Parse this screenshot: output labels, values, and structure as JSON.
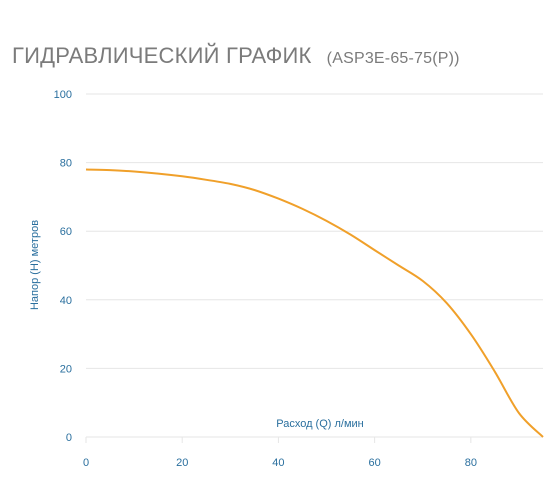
{
  "header": {
    "title": "ГИДРАВЛИЧЕСКИЙ ГРАФИК",
    "model": "(ASP3E-65-75(P))"
  },
  "colors": {
    "curve": "#f0a02a",
    "grid": "#e6e6e6",
    "ticks": "#2a6f9e"
  },
  "chart_data": {
    "type": "line",
    "title": "ГИДРАВЛИЧЕСКИЙ ГРАФИК (ASP3E-65-75(P))",
    "xlabel": "Расход (Q) л/мин",
    "ylabel": "Напор (H) метров",
    "xlim": [
      0,
      95
    ],
    "ylim": [
      0,
      100
    ],
    "xticks": [
      0,
      20,
      40,
      60,
      80
    ],
    "yticks": [
      0,
      20,
      40,
      60,
      80,
      100
    ],
    "grid": "horizontal",
    "series": [
      {
        "x": [
          0,
          5,
          10,
          15,
          20,
          25,
          30,
          35,
          40,
          45,
          50,
          55,
          60,
          65,
          70,
          75,
          80,
          85,
          90,
          95
        ],
        "y": [
          78,
          77.8,
          77.4,
          76.8,
          76,
          75,
          73.8,
          72,
          69.5,
          66.5,
          63,
          59,
          54.5,
          50,
          45.5,
          39,
          30,
          19,
          7,
          0
        ]
      }
    ]
  }
}
